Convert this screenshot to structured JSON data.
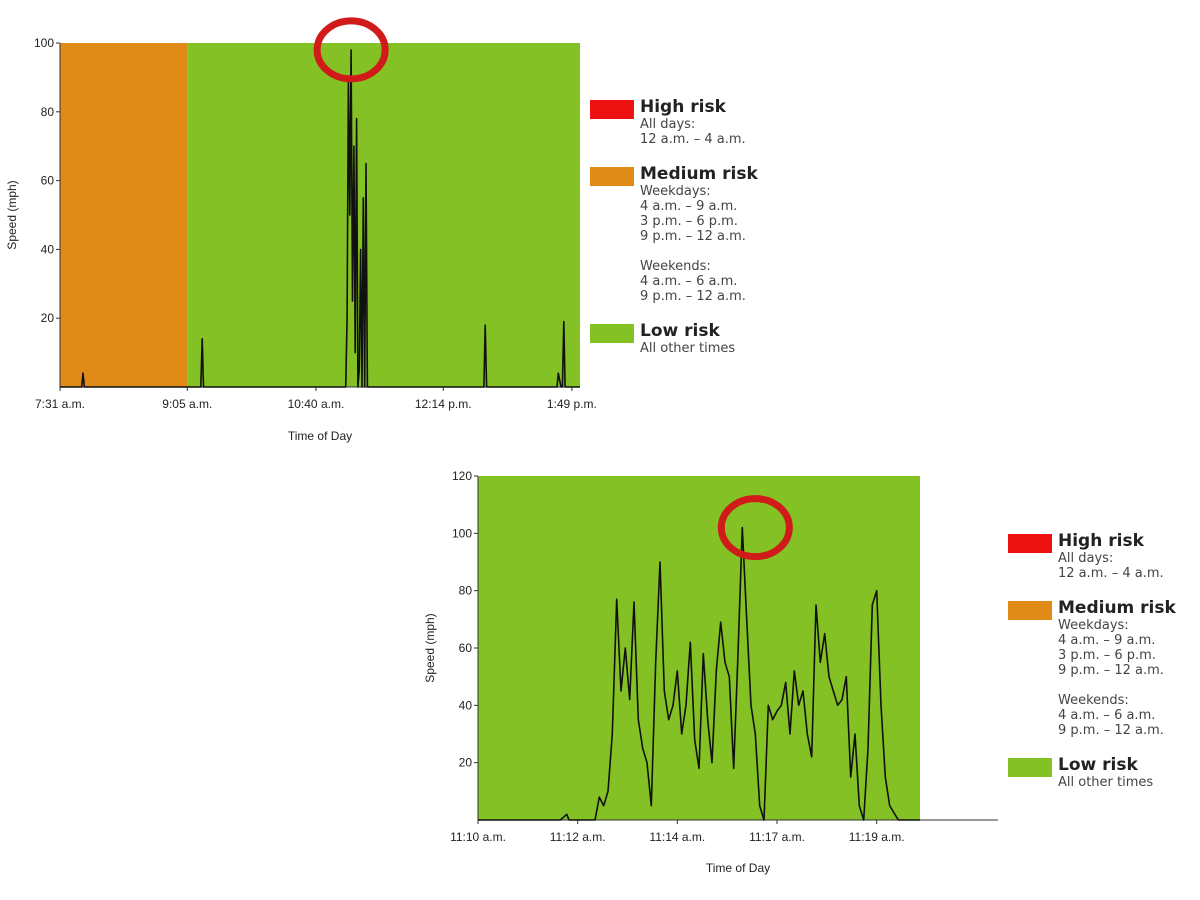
{
  "colors": {
    "high": "#ee1111",
    "medium": "#e08a17",
    "low": "#84c124",
    "line": "#111111",
    "annotation": "#d11a1a"
  },
  "legend": [
    {
      "key": "high",
      "title": "High risk",
      "desc": "All days:\n12 a.m. – 4 a.m."
    },
    {
      "key": "medium",
      "title": "Medium risk",
      "desc": "Weekdays:\n4 a.m. – 9 a.m.\n3 p.m. – 6 p.m.\n9 p.m. – 12 a.m.\n\nWeekends:\n4 a.m. – 6 a.m.\n9 p.m. – 12 a.m."
    },
    {
      "key": "low",
      "title": "Low risk",
      "desc": "All other times"
    }
  ],
  "chart_data": [
    {
      "type": "line",
      "xlabel": "Time of Day",
      "ylabel": "Speed (mph)",
      "ylim": [
        0,
        100
      ],
      "yticks": [
        20,
        40,
        60,
        80,
        100
      ],
      "xlim": [
        451,
        835
      ],
      "xtick_labels": [
        "7:31 a.m.",
        "9:05 a.m.",
        "10:40 a.m.",
        "12:14 p.m.",
        "1:49 p.m."
      ],
      "xtick_values": [
        451,
        545,
        640,
        734,
        829
      ],
      "bands": [
        {
          "risk": "medium",
          "from": 451,
          "to": 545
        },
        {
          "risk": "low",
          "from": 545,
          "to": 835
        }
      ],
      "annotation": {
        "x": 666,
        "y": 98,
        "shape": "circle"
      },
      "x": [
        451,
        467,
        468,
        469,
        555,
        556,
        557,
        558,
        662,
        663,
        664,
        665,
        666,
        667,
        668,
        669,
        670,
        671,
        672,
        673,
        674,
        675,
        676,
        677,
        678,
        679,
        680,
        764,
        765,
        766,
        767,
        818,
        819,
        821,
        822,
        823,
        824,
        825,
        835
      ],
      "y": [
        0,
        0,
        4,
        0,
        0,
        14,
        0,
        0,
        0,
        20,
        90,
        50,
        98,
        25,
        70,
        10,
        78,
        0,
        5,
        40,
        0,
        55,
        0,
        65,
        0,
        0,
        0,
        0,
        18,
        0,
        0,
        0,
        4,
        0,
        0,
        19,
        0,
        0,
        0
      ]
    },
    {
      "type": "line",
      "xlabel": "Time of Day",
      "ylabel": "Speed (mph)",
      "ylim": [
        0,
        120
      ],
      "yticks": [
        20,
        40,
        60,
        80,
        100,
        120
      ],
      "xlim": [
        670,
        682
      ],
      "xtick_labels": [
        "11:10 a.m.",
        "11:12 a.m.",
        "11:14 a.m.",
        "11:17 a.m.",
        "11:19 a.m."
      ],
      "xtick_values": [
        670,
        672.3,
        674.6,
        676.9,
        679.2
      ],
      "bands": [
        {
          "risk": "low",
          "from": 670,
          "to": 680.2
        }
      ],
      "annotation": {
        "x": 676.4,
        "y": 102,
        "shape": "circle"
      },
      "x": [
        670.0,
        671.9,
        672.05,
        672.1,
        672.7,
        672.8,
        672.9,
        673.0,
        673.1,
        673.2,
        673.3,
        673.4,
        673.5,
        673.6,
        673.7,
        673.8,
        673.9,
        674.0,
        674.1,
        674.2,
        674.3,
        674.4,
        674.5,
        674.6,
        674.7,
        674.8,
        674.9,
        675.0,
        675.1,
        675.2,
        675.3,
        675.4,
        675.5,
        675.6,
        675.7,
        675.8,
        675.9,
        676.0,
        676.1,
        676.2,
        676.3,
        676.4,
        676.5,
        676.6,
        676.7,
        676.8,
        676.9,
        677.0,
        677.1,
        677.2,
        677.3,
        677.4,
        677.5,
        677.6,
        677.7,
        677.8,
        677.9,
        678.0,
        678.1,
        678.2,
        678.3,
        678.4,
        678.5,
        678.6,
        678.7,
        678.8,
        678.9,
        679.0,
        679.1,
        679.2,
        679.3,
        679.4,
        679.5,
        679.7,
        680.2
      ],
      "y": [
        0,
        0,
        2,
        0,
        0,
        8,
        5,
        10,
        30,
        77,
        45,
        60,
        42,
        76,
        35,
        25,
        20,
        5,
        55,
        90,
        45,
        35,
        40,
        52,
        30,
        40,
        62,
        28,
        18,
        58,
        35,
        20,
        52,
        69,
        55,
        50,
        18,
        58,
        102,
        70,
        40,
        30,
        5,
        0,
        40,
        35,
        38,
        40,
        48,
        30,
        52,
        40,
        45,
        30,
        22,
        75,
        55,
        65,
        50,
        45,
        40,
        42,
        50,
        15,
        30,
        5,
        0,
        25,
        75,
        80,
        40,
        15,
        5,
        0,
        0
      ]
    }
  ]
}
